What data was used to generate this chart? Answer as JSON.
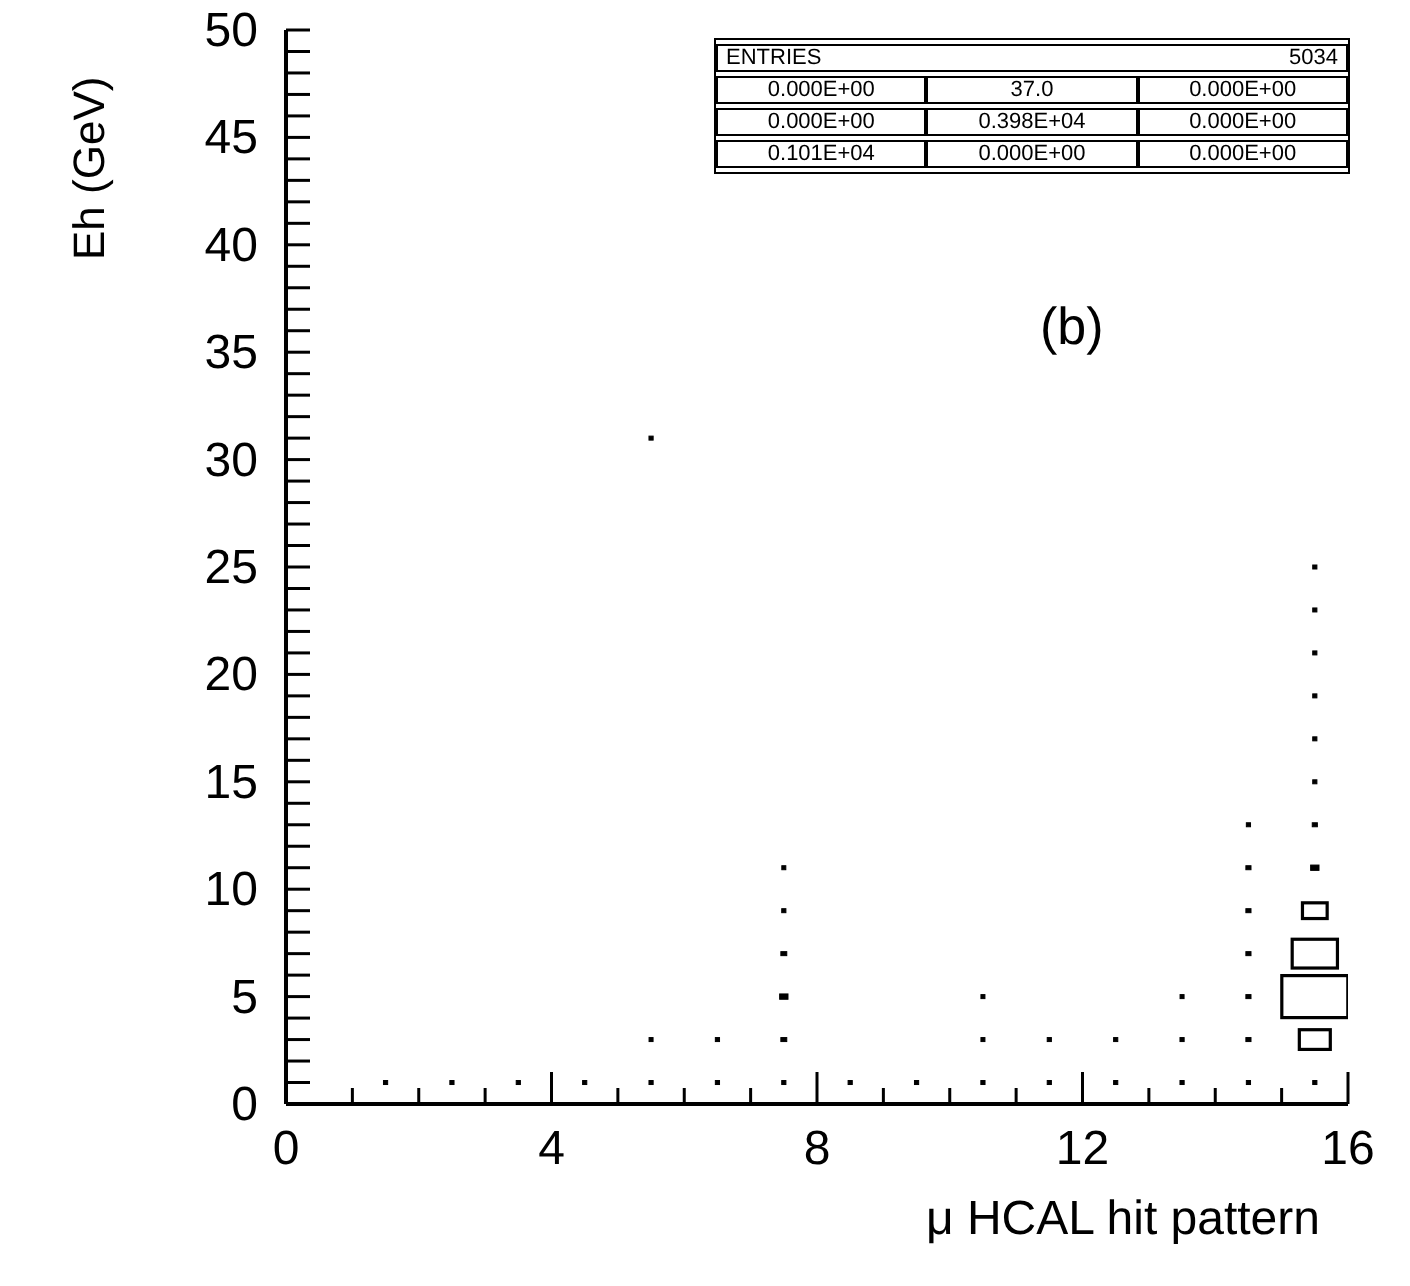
{
  "chart_data": {
    "type": "bubble",
    "xlabel": "μ HCAL hit pattern",
    "ylabel": "Eh (GeV)",
    "annotations": [
      "(b)",
      "ENTRIES",
      "5034",
      "0.000E+00",
      "37.0",
      "0.000E+00",
      "0.000E+00",
      "0.398E+04",
      "0.000E+00",
      "0.101E+04",
      "0.000E+00",
      "0.000E+00"
    ],
    "x": [
      1.5,
      2.5,
      3.5,
      4.5,
      5.5,
      6.5,
      7.5,
      8.5,
      9.5,
      10.5,
      11.5,
      12.5,
      13.5,
      14.5,
      15.5,
      5.5,
      6.5,
      7.5,
      10.5,
      11.5,
      12.5,
      13.5,
      14.5,
      15.5,
      7.5,
      10.5,
      13.5,
      14.5,
      15.5,
      7.5,
      14.5,
      15.5,
      7.5,
      14.5,
      15.5,
      7.5,
      14.5,
      15.5,
      14.5,
      15.5,
      15.5,
      15.5,
      15.5,
      15.5,
      15.5,
      15.5,
      5.5
    ],
    "values": [
      1,
      1,
      1,
      1,
      1,
      1,
      1,
      1,
      1,
      1,
      1,
      1,
      1,
      1,
      1,
      3,
      3,
      3,
      3,
      3,
      3,
      3,
      3,
      3,
      5,
      5,
      5,
      5,
      5,
      7,
      7,
      7,
      9,
      9,
      9,
      11,
      11,
      11,
      13,
      13,
      15,
      17,
      19,
      21,
      23,
      25,
      31
    ],
    "sizes": [
      0.004,
      0.004,
      0.004,
      0.004,
      0.004,
      0.004,
      0.004,
      0.004,
      0.004,
      0.004,
      0.004,
      0.004,
      0.004,
      0.004,
      0.004,
      0.002,
      0.004,
      0.008,
      0.002,
      0.004,
      0.004,
      0.004,
      0.006,
      0.22,
      0.016,
      0.002,
      0.002,
      0.006,
      1,
      0.008,
      0.006,
      0.47,
      0.004,
      0.006,
      0.14,
      0.002,
      0.006,
      0.016,
      0.004,
      0.006,
      0.004,
      0.004,
      0.004,
      0.004,
      0.004,
      0.004,
      0.004
    ],
    "color": "#000000",
    "marker": "square",
    "xlim": [
      0,
      16
    ],
    "xticks": [
      0,
      {
        "value": 1,
        "label": null
      },
      {
        "value": 2,
        "label": null
      },
      {
        "value": 3,
        "label": null
      },
      4,
      {
        "value": 5,
        "label": null
      },
      {
        "value": 6,
        "label": null
      },
      {
        "value": 7,
        "label": null
      },
      8,
      {
        "value": 9,
        "label": null
      },
      {
        "value": 10,
        "label": null
      },
      {
        "value": 11,
        "label": null
      },
      12,
      {
        "value": 13,
        "label": null
      },
      {
        "value": 14,
        "label": null
      },
      {
        "value": 15,
        "label": null
      },
      16
    ],
    "ylim": [
      0,
      50
    ],
    "yticks": [
      0,
      5,
      10,
      15,
      20,
      25,
      30,
      35,
      40,
      45,
      50
    ]
  }
}
